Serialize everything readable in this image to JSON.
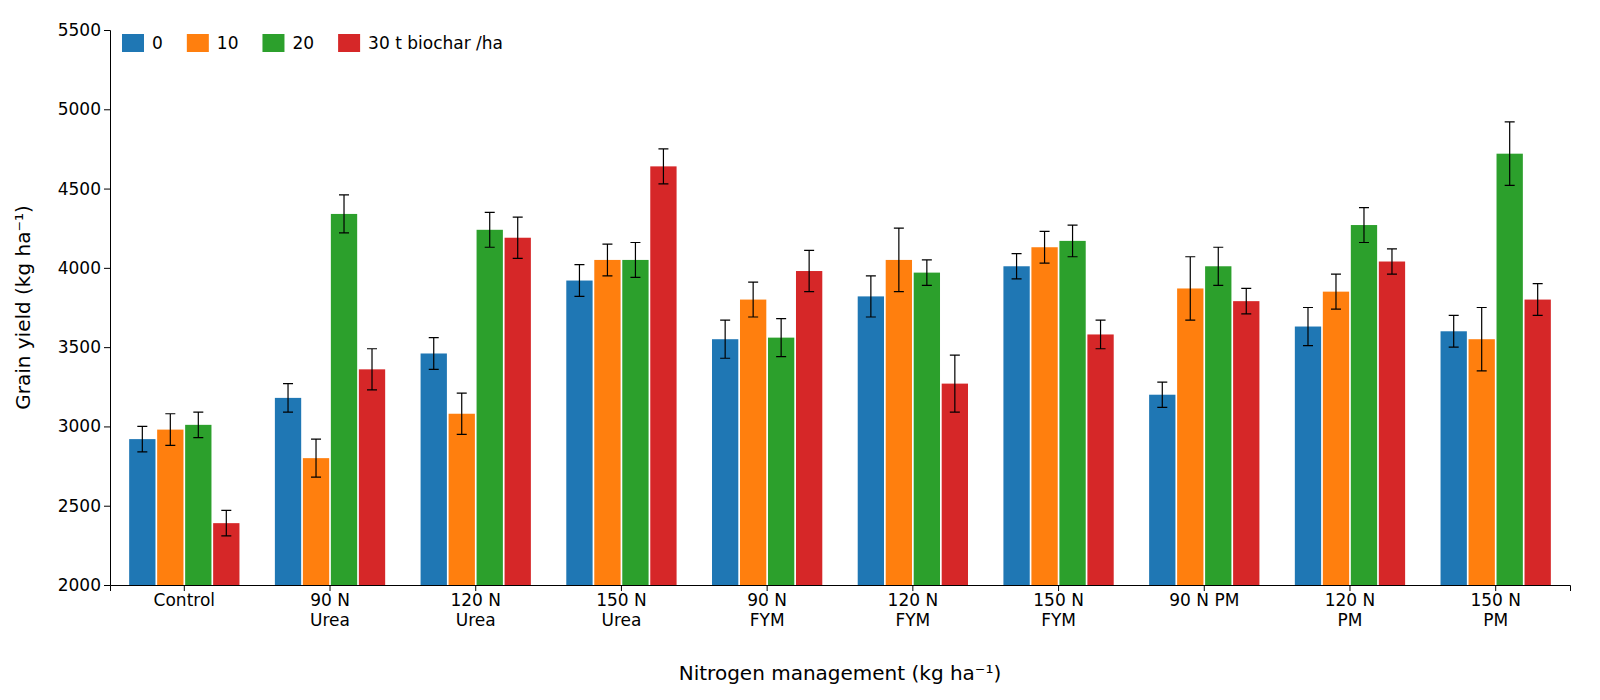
{
  "chart_data": {
    "type": "bar",
    "xlabel": "Nitrogen management (kg ha⁻¹)",
    "ylabel": "Grain yield (kg ha⁻¹)",
    "categories": [
      "Control",
      "90 N\nUrea",
      "120 N\nUrea",
      "150 N\nUrea",
      "90 N\nFYM",
      "120 N\nFYM",
      "150 N\nFYM",
      "90 N PM",
      "120 N\nPM",
      "150 N\nPM"
    ],
    "series": [
      {
        "name": "0",
        "values": [
          2920,
          3180,
          3460,
          3920,
          3550,
          3820,
          4010,
          3200,
          3630,
          3600
        ],
        "errors": [
          80,
          90,
          100,
          100,
          120,
          130,
          80,
          80,
          120,
          100
        ]
      },
      {
        "name": "10",
        "values": [
          2980,
          2800,
          3080,
          4050,
          3800,
          4050,
          4130,
          3870,
          3850,
          3550
        ],
        "errors": [
          100,
          120,
          130,
          100,
          110,
          200,
          100,
          200,
          110,
          200
        ]
      },
      {
        "name": "20",
        "values": [
          3010,
          4340,
          4240,
          4050,
          3560,
          3970,
          4170,
          4010,
          4270,
          4720
        ],
        "errors": [
          80,
          120,
          110,
          110,
          120,
          80,
          100,
          120,
          110,
          200
        ]
      },
      {
        "name": "30 t biochar /ha",
        "values": [
          2390,
          3360,
          4190,
          4640,
          3980,
          3270,
          3580,
          3790,
          4040,
          3800
        ],
        "errors": [
          80,
          130,
          130,
          110,
          130,
          180,
          90,
          80,
          80,
          100
        ]
      }
    ],
    "ylim": [
      2000,
      5500
    ],
    "yticks": [
      2000,
      2500,
      3000,
      3500,
      4000,
      4500,
      5000,
      5500
    ],
    "grid": false,
    "legend": "upper left"
  }
}
